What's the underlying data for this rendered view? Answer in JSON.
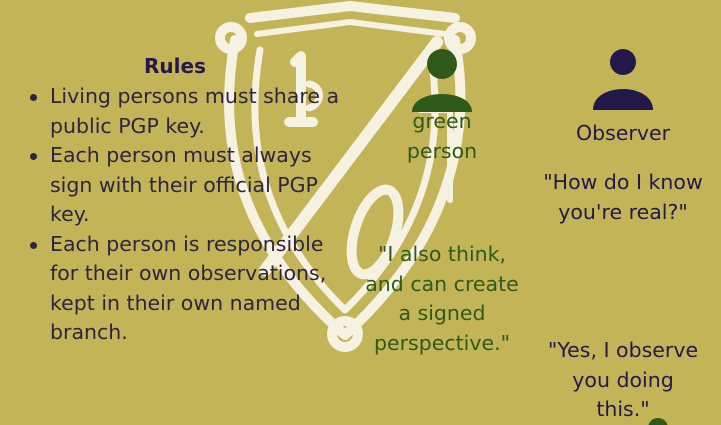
{
  "rules": {
    "title": "Rules",
    "items": [
      "Living persons must share a public PGP key.",
      "Each person must always sign with their official PGP key.",
      "Each person is responsible for their own observations, kept in their own named branch."
    ]
  },
  "green_person": {
    "name_line1": "green",
    "name_line2": "person",
    "quote": "\"I also think, and can create a signed perspective.\"",
    "color": "#2f5a1a"
  },
  "observer": {
    "name": "Observer",
    "quote1": "\"How do I know you're real?\"",
    "quote2": "\"Yes, I observe you doing this.\"",
    "color": "#23184a"
  },
  "theme": {
    "background": "#c4b458",
    "crest_color": "#f5f2e1"
  },
  "icons": {
    "crest": "shield-crest-icon",
    "green_person": "person-icon",
    "observer": "person-icon"
  }
}
